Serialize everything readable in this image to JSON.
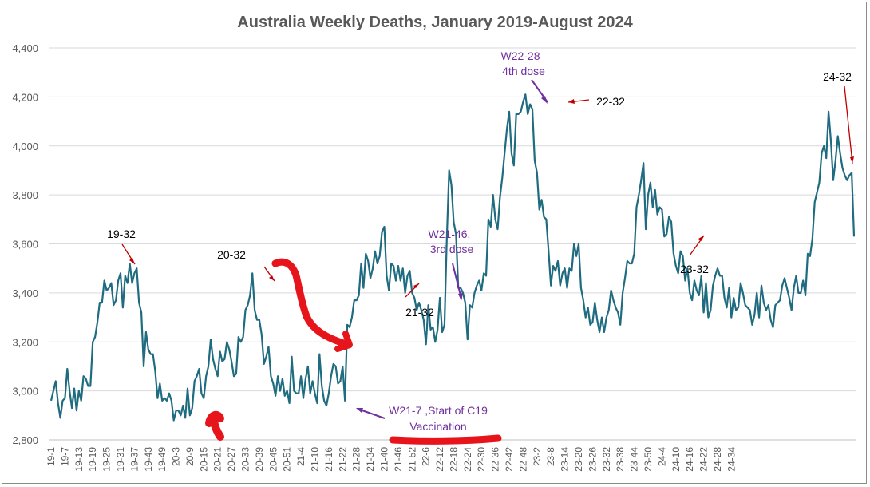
{
  "chart_data": {
    "type": "line",
    "title": "Australia Weekly Deaths, January 2019-August 2024",
    "xlabel": "",
    "ylabel": "",
    "ylim": [
      2800,
      4400
    ],
    "yticks": [
      "2,800",
      "3,000",
      "3,200",
      "3,400",
      "3,600",
      "3,800",
      "4,000",
      "4,200",
      "4,400"
    ],
    "grid": true,
    "legend": "none",
    "line_color": "#1f6b80",
    "xtick_labels": [
      "19-1",
      "19-7",
      "19-13",
      "19-19",
      "19-25",
      "19-31",
      "19-37",
      "19-43",
      "19-49",
      "20-3",
      "20-9",
      "20-15",
      "20-21",
      "20-27",
      "20-33",
      "20-39",
      "20-45",
      "20-51",
      "21-4",
      "21-10",
      "21-16",
      "21-22",
      "21-28",
      "21-34",
      "21-40",
      "21-46",
      "21-52",
      "22-6",
      "22-12",
      "22-18",
      "22-24",
      "22-30",
      "22-36",
      "22-42",
      "22-48",
      "23-2",
      "23-8",
      "23-14",
      "23-20",
      "23-26",
      "23-32",
      "23-38",
      "23-44",
      "23-50",
      "24-4",
      "24-10",
      "24-16",
      "24-22",
      "24-28",
      "24-34"
    ],
    "series": [
      {
        "values": [
          2960,
          3000,
          3040,
          2950,
          2890,
          2960,
          2970,
          3090,
          3000,
          2930,
          3010,
          2920,
          3000,
          2960,
          3060,
          3050,
          3020,
          3020,
          3200,
          3220,
          3280,
          3360,
          3360,
          3450,
          3410,
          3420,
          3440,
          3350,
          3370,
          3450,
          3480,
          3340,
          3470,
          3440,
          3520,
          3440,
          3480,
          3500,
          3360,
          3320,
          3100,
          3240,
          3170,
          3150,
          3150,
          3080,
          2970,
          3030,
          2960,
          2970,
          2960,
          2990,
          2960,
          2880,
          2920,
          2920,
          2900,
          2940,
          2890,
          3010,
          2900,
          2930,
          3040,
          3060,
          3090,
          2990,
          2970,
          3060,
          3100,
          3210,
          3130,
          3090,
          3060,
          3160,
          3120,
          3130,
          3200,
          3170,
          3120,
          3060,
          3070,
          3220,
          3200,
          3220,
          3330,
          3350,
          3390,
          3480,
          3330,
          3290,
          3290,
          3230,
          3110,
          3140,
          3180,
          3060,
          3030,
          2980,
          3060,
          3000,
          3050,
          2980,
          3000,
          2950,
          3140,
          3000,
          2990,
          2990,
          3060,
          2970,
          3050,
          3100,
          2990,
          3040,
          2990,
          2950,
          3150,
          3020,
          2960,
          2940,
          2990,
          3060,
          3110,
          3100,
          3030,
          3040,
          3100,
          2960,
          3270,
          3260,
          3300,
          3370,
          3370,
          3390,
          3520,
          3420,
          3560,
          3530,
          3460,
          3500,
          3570,
          3520,
          3550,
          3650,
          3670,
          3470,
          3410,
          3520,
          3510,
          3450,
          3510,
          3450,
          3500,
          3400,
          3470,
          3490,
          3400,
          3380,
          3330,
          3360,
          3330,
          3290,
          3190,
          3350,
          3250,
          3260,
          3200,
          3250,
          3380,
          3240,
          3270,
          3620,
          3900,
          3840,
          3690,
          3640,
          3420,
          3420,
          3400,
          3360,
          3210,
          3350,
          3340,
          3400,
          3430,
          3450,
          3410,
          3480,
          3470,
          3700,
          3670,
          3800,
          3700,
          3660,
          3790,
          3870,
          3970,
          4070,
          4140,
          3970,
          3920,
          4130,
          4130,
          4140,
          4180,
          4210,
          4130,
          4170,
          4150,
          3940,
          3890,
          3740,
          3780,
          3710,
          3700,
          3570,
          3430,
          3510,
          3490,
          3530,
          3430,
          3480,
          3500,
          3420,
          3500,
          3490,
          3600,
          3550,
          3600,
          3420,
          3370,
          3300,
          3340,
          3270,
          3280,
          3360,
          3290,
          3240,
          3300,
          3240,
          3300,
          3330,
          3410,
          3370,
          3340,
          3320,
          3270,
          3400,
          3460,
          3530,
          3520,
          3520,
          3560,
          3750,
          3800,
          3860,
          3930,
          3660,
          3800,
          3850,
          3750,
          3820,
          3720,
          3750,
          3740,
          3630,
          3640,
          3710,
          3690,
          3560,
          3510,
          3480,
          3570,
          3550,
          3450,
          3500,
          3400,
          3370,
          3450,
          3410,
          3390,
          3470,
          3320,
          3440,
          3300,
          3330,
          3430,
          3470,
          3500,
          3470,
          3470,
          3380,
          3340,
          3420,
          3300,
          3380,
          3330,
          3340,
          3440,
          3400,
          3350,
          3340,
          3330,
          3270,
          3310,
          3400,
          3300,
          3430,
          3360,
          3330,
          3350,
          3290,
          3260,
          3350,
          3360,
          3370,
          3430,
          3460,
          3420,
          3380,
          3330,
          3420,
          3470,
          3400,
          3400,
          3450,
          3390,
          3560,
          3550,
          3620,
          3770,
          3810,
          3850,
          3970,
          4000,
          3950,
          4140,
          4020,
          3860,
          3940,
          4040,
          3970,
          3910,
          3880,
          3860,
          3880,
          3890,
          3630
        ]
      }
    ],
    "annotations": [
      {
        "text": "19-32",
        "color": "#000000"
      },
      {
        "text": "20-32",
        "color": "#000000"
      },
      {
        "text": "21-32",
        "color": "#000000"
      },
      {
        "text": "22-32",
        "color": "#000000"
      },
      {
        "text": "23-32",
        "color": "#000000"
      },
      {
        "text": "24-32",
        "color": "#000000"
      },
      {
        "text": "W22-28",
        "color": "#7030a0"
      },
      {
        "text": "4th dose",
        "color": "#7030a0"
      },
      {
        "text": "W21-46,",
        "color": "#7030a0"
      },
      {
        "text": "3rd dose",
        "color": "#7030a0"
      },
      {
        "text": "W21-7 ,Start of C19",
        "color": "#7030a0"
      },
      {
        "text": "Vaccination",
        "color": "#7030a0"
      }
    ]
  }
}
